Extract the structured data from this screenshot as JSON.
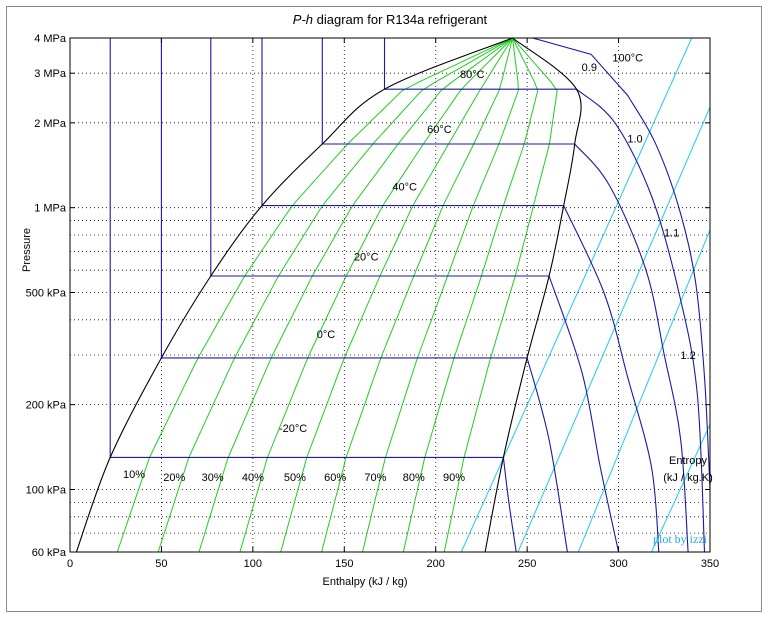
{
  "chart_data": {
    "type": "line",
    "title_italic": "P-h",
    "title_rest": " diagram for R134a refrigerant",
    "xlabel": "Enthalpy (kJ / kg)",
    "ylabel": "Pressure",
    "xlim": [
      0,
      350
    ],
    "ylim_kPa": [
      60,
      4000
    ],
    "y_scale": "log",
    "x_ticks": [
      0,
      50,
      100,
      150,
      200,
      250,
      300,
      350
    ],
    "x_tick_labels": [
      "0",
      "50",
      "100",
      "150",
      "200",
      "250",
      "300",
      "350"
    ],
    "y_ticks_kPa": [
      60,
      100,
      200,
      500,
      1000,
      2000,
      3000,
      4000
    ],
    "y_tick_labels": [
      "60 kPa",
      "100 kPa",
      "200 kPa",
      "500 kPa",
      "1 MPa",
      "2 MPa",
      "3 MPa",
      "4 MPa"
    ],
    "grid": true,
    "colors": {
      "saturation_dome": "#000000",
      "isotherms": "#1a1aa8",
      "quality_lines": "#22cc22",
      "isentropes": "#33ccee",
      "credit": "#22a6e0"
    },
    "saturation_liquid": [
      [
        3.5,
        60
      ],
      [
        22,
        130
      ],
      [
        50,
        293
      ],
      [
        77,
        572
      ],
      [
        105,
        1017
      ],
      [
        138,
        1682
      ],
      [
        172,
        2633
      ],
      [
        242,
        4000
      ]
    ],
    "saturation_vapor": [
      [
        227,
        60
      ],
      [
        237,
        130
      ],
      [
        250,
        293
      ],
      [
        262,
        572
      ],
      [
        270,
        1017
      ],
      [
        276,
        1682
      ],
      [
        277,
        2633
      ],
      [
        242,
        4000
      ]
    ],
    "isotherms": [
      {
        "label": "-20°C",
        "label_pos": [
          122,
          160
        ],
        "points": [
          [
            22,
            4000
          ],
          [
            22,
            130
          ],
          [
            237,
            130
          ],
          [
            240,
            90
          ],
          [
            244,
            60
          ]
        ]
      },
      {
        "label": "0°C",
        "label_pos": [
          140,
          345
        ],
        "points": [
          [
            50,
            4000
          ],
          [
            50,
            293
          ],
          [
            250,
            293
          ],
          [
            262,
            150
          ],
          [
            272,
            60
          ]
        ]
      },
      {
        "label": "20°C",
        "label_pos": [
          162,
          650
        ],
        "points": [
          [
            77,
            4000
          ],
          [
            77,
            572
          ],
          [
            262,
            572
          ],
          [
            280,
            260
          ],
          [
            290,
            120
          ],
          [
            300,
            60
          ]
        ]
      },
      {
        "label": "40°C",
        "label_pos": [
          183,
          1150
        ],
        "points": [
          [
            105,
            4000
          ],
          [
            105,
            1017
          ],
          [
            270,
            1017
          ],
          [
            292,
            500
          ],
          [
            305,
            250
          ],
          [
            318,
            120
          ],
          [
            322,
            60
          ]
        ]
      },
      {
        "label": "60°C",
        "label_pos": [
          202,
          1840
        ],
        "points": [
          [
            138,
            4000
          ],
          [
            138,
            1682
          ],
          [
            276,
            1682
          ],
          [
            295,
            1200
          ],
          [
            315,
            600
          ],
          [
            325,
            300
          ],
          [
            334,
            150
          ],
          [
            338,
            60
          ]
        ]
      },
      {
        "label": "80°C",
        "label_pos": [
          220,
          2880
        ],
        "points": [
          [
            172,
            4000
          ],
          [
            172,
            2633
          ],
          [
            277,
            2633
          ],
          [
            298,
            2000
          ],
          [
            318,
            1100
          ],
          [
            333,
            500
          ],
          [
            343,
            220
          ],
          [
            347,
            60
          ]
        ]
      },
      {
        "label": "100°C",
        "label_pos": [
          305,
          3300
        ],
        "points": [
          [
            253,
            4000
          ],
          [
            285,
            3500
          ],
          [
            305,
            2500
          ],
          [
            320,
            1700
          ],
          [
            333,
            1000
          ],
          [
            342,
            550
          ],
          [
            347,
            250
          ],
          [
            350,
            100
          ]
        ]
      }
    ],
    "quality_lines": [
      {
        "label": "10%",
        "label_pos": [
          35,
          110
        ]
      },
      {
        "label": "20%",
        "label_pos": [
          57,
          107
        ]
      },
      {
        "label": "30%",
        "label_pos": [
          78,
          107
        ]
      },
      {
        "label": "40%",
        "label_pos": [
          100,
          107
        ]
      },
      {
        "label": "50%",
        "label_pos": [
          123,
          107
        ]
      },
      {
        "label": "60%",
        "label_pos": [
          145,
          107
        ]
      },
      {
        "label": "70%",
        "label_pos": [
          167,
          107
        ]
      },
      {
        "label": "80%",
        "label_pos": [
          188,
          107
        ]
      },
      {
        "label": "90%",
        "label_pos": [
          210,
          107
        ]
      }
    ],
    "isentropes": [
      {
        "label": "0.9",
        "label_pos": [
          284,
          3050
        ],
        "points": [
          [
            214,
            60
          ],
          [
            340,
            4000
          ]
        ]
      },
      {
        "label": "1.0",
        "label_pos": [
          309,
          1700
        ],
        "points": [
          [
            245,
            60
          ],
          [
            355,
            2700
          ]
        ]
      },
      {
        "label": "1.1",
        "label_pos": [
          329,
          790
        ],
        "points": [
          [
            278,
            60
          ],
          [
            355,
            1000
          ]
        ]
      },
      {
        "label": "1.2",
        "label_pos": [
          338,
          290
        ],
        "points": [
          [
            318,
            60
          ],
          [
            355,
            200
          ]
        ]
      }
    ],
    "entropy_legend": [
      "Entropy",
      "(kJ / kg.K)"
    ],
    "credit": "plot by izzi"
  }
}
